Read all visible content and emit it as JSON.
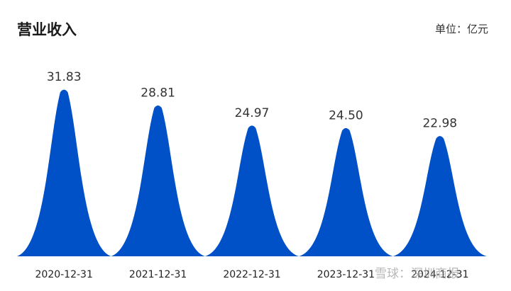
{
  "header": {
    "title": "营业收入",
    "unit": "单位：亿元"
  },
  "watermark": "雪球：深圳商报",
  "colors": {
    "series": "#0050C8"
  },
  "chart_data": {
    "type": "area",
    "title": "营业收入",
    "categories": [
      "2020-12-31",
      "2021-12-31",
      "2022-12-31",
      "2023-12-31",
      "2024-12-31"
    ],
    "values": [
      31.83,
      28.81,
      24.97,
      24.5,
      22.98
    ],
    "data_labels": [
      "31.83",
      "28.81",
      "24.97",
      "24.50",
      "22.98"
    ],
    "ylim": [
      0,
      34
    ],
    "grid": false,
    "legend": "none"
  }
}
